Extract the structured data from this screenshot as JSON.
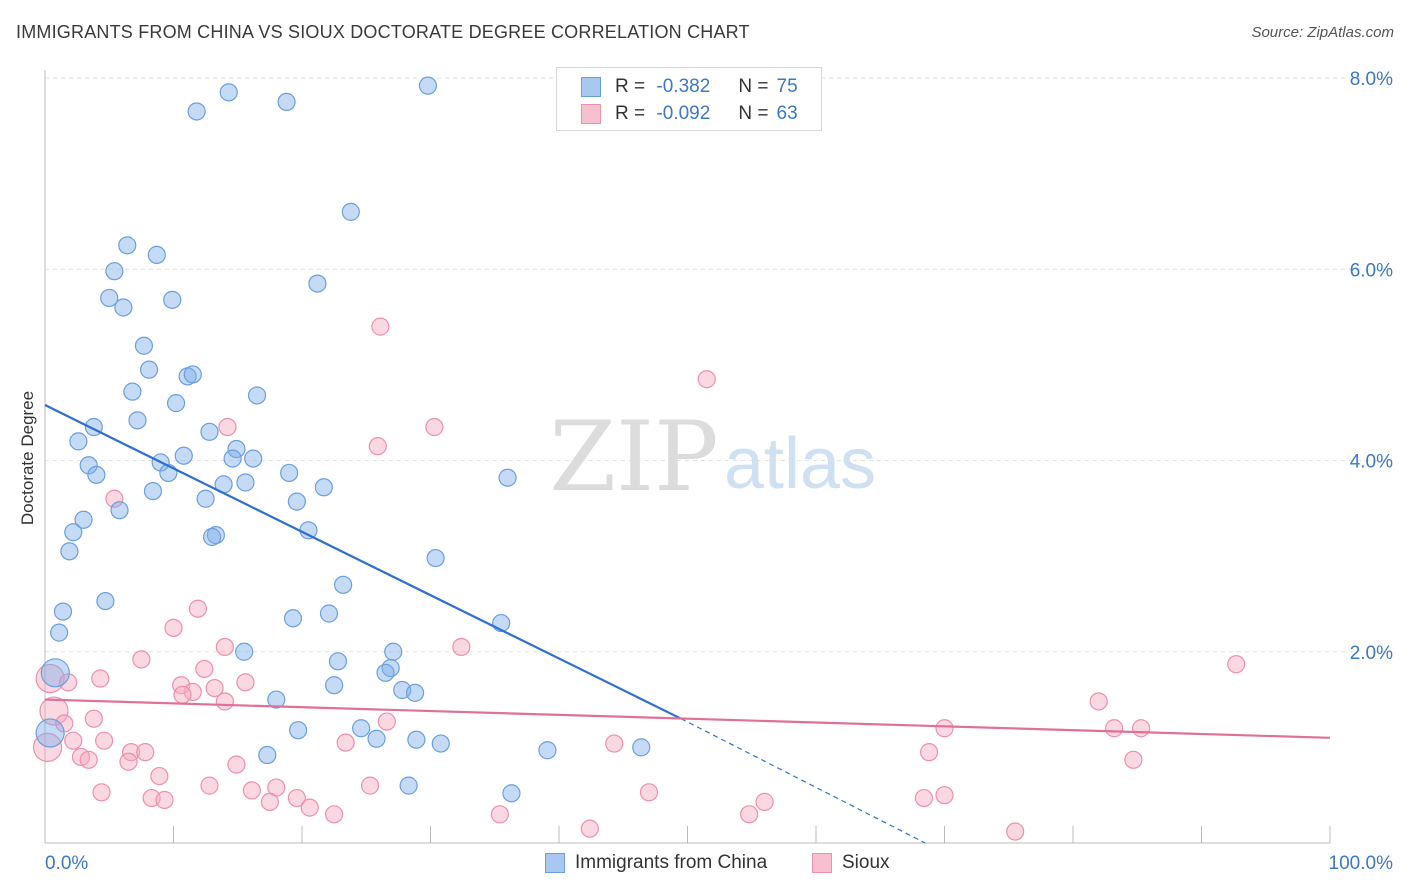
{
  "title": "IMMIGRANTS FROM CHINA VS SIOUX DOCTORATE DEGREE CORRELATION CHART",
  "source": "Source: ZipAtlas.com",
  "watermark": {
    "zip": "ZIP",
    "atlas": "atlas"
  },
  "legend_top": {
    "rows": [
      {
        "r_label": "R =",
        "r_value": "-0.382",
        "n_label": "N =",
        "n_value": "75",
        "color": "#a9c8f0",
        "border": "#6a9fde"
      },
      {
        "r_label": "R =",
        "r_value": "-0.092",
        "n_label": "N =",
        "n_value": "63",
        "color": "#f7bfd0",
        "border": "#ee8fab"
      }
    ]
  },
  "bottom_legend": [
    {
      "label": "Immigrants from China",
      "color": "#a9c8f0",
      "border": "#6a9fde"
    },
    {
      "label": "Sioux",
      "color": "#f7bfd0",
      "border": "#ee8fab"
    }
  ],
  "chart_data": {
    "type": "scatter",
    "title": "IMMIGRANTS FROM CHINA VS SIOUX DOCTORATE DEGREE CORRELATION CHART",
    "xlabel": "",
    "ylabel": "Doctorate Degree",
    "xlim": [
      0,
      100
    ],
    "ylim": [
      0,
      8.5
    ],
    "x_tick_labels": [
      "0.0%",
      "100.0%"
    ],
    "y_ticks": [
      2,
      4,
      6,
      8
    ],
    "y_tick_labels": [
      "2.0%",
      "4.0%",
      "6.0%",
      "8.0%"
    ],
    "grid": true,
    "legend_position": "top-center",
    "series": [
      {
        "name": "Immigrants from China",
        "color": "#7fb0e8",
        "line_color": "#2e6fd1",
        "trend": {
          "x0": 0,
          "y0": 4.58,
          "x1": 49.5,
          "y1": 1.3,
          "dash_to_x": 68.5,
          "dash_to_y": 0.0
        },
        "points": [
          [
            11.8,
            7.65
          ],
          [
            14.3,
            7.85
          ],
          [
            18.8,
            7.75
          ],
          [
            29.8,
            7.92
          ],
          [
            23.8,
            6.6
          ],
          [
            6.4,
            6.25
          ],
          [
            8.7,
            6.15
          ],
          [
            5.4,
            5.98
          ],
          [
            21.2,
            5.85
          ],
          [
            5.0,
            5.7
          ],
          [
            6.1,
            5.6
          ],
          [
            9.9,
            5.68
          ],
          [
            7.7,
            5.2
          ],
          [
            8.1,
            4.95
          ],
          [
            11.1,
            4.88
          ],
          [
            11.5,
            4.9
          ],
          [
            6.8,
            4.72
          ],
          [
            16.5,
            4.68
          ],
          [
            10.2,
            4.6
          ],
          [
            7.2,
            4.42
          ],
          [
            3.8,
            4.35
          ],
          [
            12.8,
            4.3
          ],
          [
            2.6,
            4.2
          ],
          [
            14.9,
            4.12
          ],
          [
            10.8,
            4.05
          ],
          [
            14.6,
            4.02
          ],
          [
            16.2,
            4.02
          ],
          [
            3.4,
            3.95
          ],
          [
            9.0,
            3.98
          ],
          [
            9.6,
            3.87
          ],
          [
            19.0,
            3.87
          ],
          [
            4.0,
            3.85
          ],
          [
            36.0,
            3.82
          ],
          [
            15.6,
            3.77
          ],
          [
            13.9,
            3.75
          ],
          [
            21.7,
            3.72
          ],
          [
            8.4,
            3.68
          ],
          [
            12.5,
            3.6
          ],
          [
            19.6,
            3.57
          ],
          [
            5.8,
            3.48
          ],
          [
            3.0,
            3.38
          ],
          [
            2.2,
            3.25
          ],
          [
            20.5,
            3.27
          ],
          [
            13.3,
            3.22
          ],
          [
            13.0,
            3.2
          ],
          [
            1.9,
            3.05
          ],
          [
            30.4,
            2.98
          ],
          [
            23.2,
            2.7
          ],
          [
            4.7,
            2.53
          ],
          [
            1.4,
            2.42
          ],
          [
            22.1,
            2.4
          ],
          [
            19.3,
            2.35
          ],
          [
            35.5,
            2.3
          ],
          [
            1.1,
            2.2
          ],
          [
            15.5,
            2.0
          ],
          [
            27.1,
            2.0
          ],
          [
            22.8,
            1.9
          ],
          [
            26.9,
            1.83
          ],
          [
            26.5,
            1.78
          ],
          [
            0.8,
            1.78
          ],
          [
            22.5,
            1.65
          ],
          [
            27.8,
            1.6
          ],
          [
            28.8,
            1.57
          ],
          [
            18.0,
            1.5
          ],
          [
            24.6,
            1.2
          ],
          [
            19.7,
            1.18
          ],
          [
            0.4,
            1.15
          ],
          [
            25.8,
            1.09
          ],
          [
            28.9,
            1.08
          ],
          [
            30.8,
            1.04
          ],
          [
            46.4,
            1.0
          ],
          [
            39.1,
            0.97
          ],
          [
            17.3,
            0.92
          ],
          [
            28.3,
            0.6
          ],
          [
            36.3,
            0.52
          ]
        ]
      },
      {
        "name": "Sioux",
        "color": "#f4a9bf",
        "line_color": "#e0709a",
        "trend": {
          "x0": 0,
          "y0": 1.5,
          "x1": 100,
          "y1": 1.1
        },
        "points": [
          [
            26.1,
            5.4
          ],
          [
            51.5,
            4.85
          ],
          [
            30.3,
            4.35
          ],
          [
            14.2,
            4.35
          ],
          [
            25.9,
            4.15
          ],
          [
            5.4,
            3.6
          ],
          [
            11.9,
            2.45
          ],
          [
            10.0,
            2.25
          ],
          [
            32.4,
            2.05
          ],
          [
            14.0,
            2.05
          ],
          [
            92.7,
            1.87
          ],
          [
            7.5,
            1.92
          ],
          [
            12.4,
            1.82
          ],
          [
            4.3,
            1.72
          ],
          [
            0.4,
            1.72
          ],
          [
            1.8,
            1.68
          ],
          [
            15.6,
            1.68
          ],
          [
            10.6,
            1.65
          ],
          [
            13.2,
            1.62
          ],
          [
            11.5,
            1.58
          ],
          [
            10.7,
            1.55
          ],
          [
            14.0,
            1.48
          ],
          [
            82.0,
            1.48
          ],
          [
            0.7,
            1.38
          ],
          [
            3.8,
            1.3
          ],
          [
            26.6,
            1.27
          ],
          [
            1.5,
            1.25
          ],
          [
            83.2,
            1.2
          ],
          [
            85.3,
            1.2
          ],
          [
            70.0,
            1.2
          ],
          [
            2.2,
            1.07
          ],
          [
            4.6,
            1.07
          ],
          [
            23.4,
            1.05
          ],
          [
            44.3,
            1.04
          ],
          [
            6.7,
            0.95
          ],
          [
            7.8,
            0.95
          ],
          [
            68.8,
            0.95
          ],
          [
            2.8,
            0.9
          ],
          [
            3.4,
            0.87
          ],
          [
            6.5,
            0.85
          ],
          [
            84.7,
            0.87
          ],
          [
            14.9,
            0.82
          ],
          [
            8.9,
            0.7
          ],
          [
            25.3,
            0.6
          ],
          [
            12.8,
            0.6
          ],
          [
            18.0,
            0.58
          ],
          [
            16.1,
            0.55
          ],
          [
            4.4,
            0.53
          ],
          [
            47.0,
            0.53
          ],
          [
            70.0,
            0.5
          ],
          [
            8.3,
            0.47
          ],
          [
            19.6,
            0.47
          ],
          [
            68.4,
            0.47
          ],
          [
            9.3,
            0.45
          ],
          [
            17.5,
            0.43
          ],
          [
            56.0,
            0.43
          ],
          [
            20.6,
            0.37
          ],
          [
            54.8,
            0.3
          ],
          [
            22.5,
            0.3
          ],
          [
            35.4,
            0.3
          ],
          [
            42.4,
            0.15
          ],
          [
            75.5,
            0.12
          ],
          [
            0.2,
            1.0
          ]
        ]
      }
    ]
  }
}
